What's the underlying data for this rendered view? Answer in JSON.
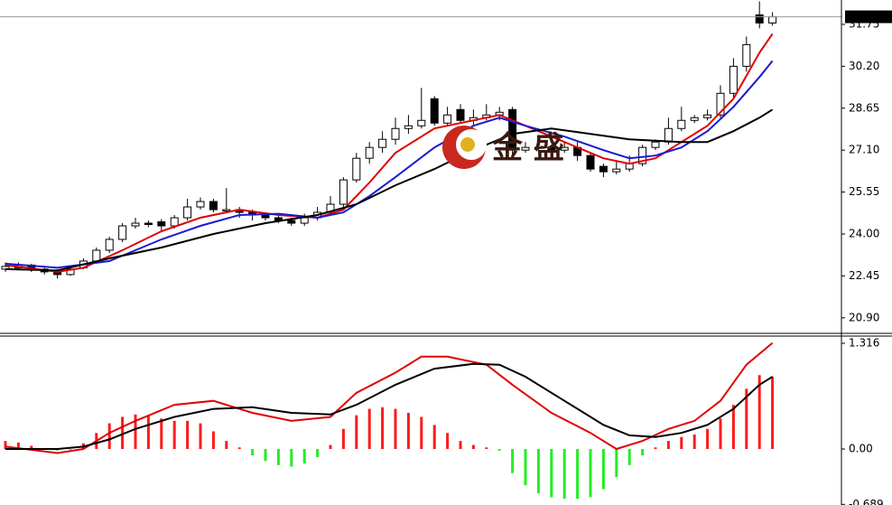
{
  "chart_data": [
    {
      "type": "candlestick",
      "ylim": [
        20.36,
        32.65
      ],
      "yticks": [
        {
          "value": 31.75,
          "label": "31.75"
        },
        {
          "value": 30.2,
          "label": "30.20"
        },
        {
          "value": 28.65,
          "label": "28.65"
        },
        {
          "value": 27.1,
          "label": "27.10"
        },
        {
          "value": 25.55,
          "label": "25.55"
        },
        {
          "value": 24.0,
          "label": "24.00"
        },
        {
          "value": 22.45,
          "label": "22.45"
        },
        {
          "value": 20.9,
          "label": "20.90"
        }
      ],
      "last_price": 32.03,
      "watermark": "金 盛",
      "up_color": "#ffffff",
      "down_color": "#000000",
      "ohlc": [
        [
          22.7,
          22.95,
          22.6,
          22.8
        ],
        [
          22.75,
          22.95,
          22.7,
          22.85
        ],
        [
          22.85,
          22.9,
          22.6,
          22.7
        ],
        [
          22.7,
          22.75,
          22.5,
          22.6
        ],
        [
          22.6,
          22.7,
          22.35,
          22.5
        ],
        [
          22.5,
          22.85,
          22.45,
          22.7
        ],
        [
          22.75,
          23.1,
          22.7,
          23.0
        ],
        [
          23.0,
          23.5,
          22.95,
          23.4
        ],
        [
          23.4,
          23.9,
          23.3,
          23.8
        ],
        [
          23.8,
          24.4,
          23.7,
          24.3
        ],
        [
          24.3,
          24.6,
          24.2,
          24.4
        ],
        [
          24.4,
          24.5,
          24.25,
          24.35
        ],
        [
          24.45,
          24.55,
          24.1,
          24.3
        ],
        [
          24.3,
          24.7,
          24.2,
          24.6
        ],
        [
          24.6,
          25.3,
          24.5,
          25.0
        ],
        [
          25.0,
          25.35,
          24.9,
          25.2
        ],
        [
          25.2,
          25.3,
          24.8,
          24.9
        ],
        [
          24.85,
          25.7,
          24.8,
          24.9
        ],
        [
          24.9,
          25.0,
          24.6,
          24.8
        ],
        [
          24.8,
          24.9,
          24.5,
          24.7
        ],
        [
          24.7,
          24.8,
          24.5,
          24.6
        ],
        [
          24.6,
          24.7,
          24.4,
          24.5
        ],
        [
          24.5,
          24.6,
          24.3,
          24.4
        ],
        [
          24.4,
          24.75,
          24.3,
          24.6
        ],
        [
          24.6,
          25.0,
          24.5,
          24.8
        ],
        [
          24.8,
          25.4,
          24.7,
          25.1
        ],
        [
          25.1,
          26.1,
          25.0,
          26.0
        ],
        [
          26.0,
          27.0,
          25.9,
          26.8
        ],
        [
          26.8,
          27.4,
          26.6,
          27.2
        ],
        [
          27.2,
          27.8,
          27.0,
          27.5
        ],
        [
          27.5,
          28.3,
          27.3,
          27.9
        ],
        [
          27.9,
          28.4,
          27.7,
          28.0
        ],
        [
          28.0,
          29.4,
          27.9,
          28.2
        ],
        [
          29.0,
          29.1,
          28.0,
          28.1
        ],
        [
          28.1,
          28.7,
          28.0,
          28.4
        ],
        [
          28.6,
          28.8,
          28.1,
          28.2
        ],
        [
          28.2,
          28.6,
          28.0,
          28.3
        ],
        [
          28.3,
          28.8,
          28.2,
          28.4
        ],
        [
          28.4,
          28.7,
          28.2,
          28.5
        ],
        [
          28.6,
          28.7,
          26.9,
          27.1
        ],
        [
          27.1,
          27.4,
          27.0,
          27.2
        ],
        [
          27.2,
          27.4,
          27.0,
          27.2
        ],
        [
          27.2,
          27.3,
          26.9,
          27.1
        ],
        [
          27.1,
          27.4,
          27.0,
          27.2
        ],
        [
          27.2,
          27.4,
          26.7,
          26.9
        ],
        [
          26.9,
          27.0,
          26.3,
          26.4
        ],
        [
          26.5,
          26.6,
          26.1,
          26.3
        ],
        [
          26.3,
          26.7,
          26.2,
          26.4
        ],
        [
          26.4,
          26.9,
          26.3,
          26.6
        ],
        [
          26.6,
          27.3,
          26.5,
          27.2
        ],
        [
          27.2,
          27.5,
          27.1,
          27.4
        ],
        [
          27.4,
          28.3,
          27.3,
          27.9
        ],
        [
          27.9,
          28.7,
          27.8,
          28.2
        ],
        [
          28.2,
          28.4,
          28.1,
          28.3
        ],
        [
          28.3,
          28.6,
          28.2,
          28.4
        ],
        [
          28.4,
          29.5,
          28.3,
          29.2
        ],
        [
          29.2,
          30.5,
          29.0,
          30.2
        ],
        [
          30.2,
          31.3,
          30.0,
          31.0
        ],
        [
          32.1,
          32.6,
          31.6,
          31.8
        ],
        [
          31.8,
          32.2,
          31.7,
          32.03
        ]
      ],
      "lines": [
        {
          "color": "#e00000",
          "x": [
            0,
            4,
            6,
            9,
            12,
            15,
            18,
            21,
            24,
            26,
            28,
            30,
            33,
            36,
            38,
            40,
            43,
            46,
            48,
            50,
            52,
            54,
            56,
            58,
            59
          ],
          "values": [
            22.85,
            22.6,
            22.75,
            23.4,
            24.1,
            24.6,
            24.9,
            24.7,
            24.6,
            24.9,
            25.9,
            27.0,
            27.9,
            28.2,
            28.4,
            28.0,
            27.4,
            26.8,
            26.6,
            26.8,
            27.4,
            28.0,
            29.0,
            30.7,
            31.4
          ]
        },
        {
          "color": "#1a1ad0",
          "x": [
            0,
            4,
            8,
            12,
            15,
            18,
            21,
            24,
            26,
            28,
            30,
            33,
            36,
            38,
            40,
            43,
            46,
            48,
            50,
            52,
            54,
            56,
            58,
            59
          ],
          "values": [
            22.9,
            22.75,
            23.0,
            23.8,
            24.3,
            24.7,
            24.75,
            24.6,
            24.8,
            25.4,
            26.1,
            27.2,
            28.0,
            28.3,
            28.0,
            27.6,
            27.1,
            26.8,
            26.9,
            27.2,
            27.8,
            28.7,
            29.8,
            30.4
          ]
        },
        {
          "color": "#000000",
          "x": [
            0,
            4,
            8,
            12,
            16,
            20,
            24,
            27,
            30,
            33,
            36,
            39,
            42,
            45,
            48,
            52,
            54,
            56,
            58,
            59
          ],
          "values": [
            22.7,
            22.65,
            23.1,
            23.5,
            24.0,
            24.4,
            24.7,
            25.1,
            25.8,
            26.4,
            27.1,
            27.7,
            27.9,
            27.7,
            27.5,
            27.4,
            27.4,
            27.8,
            28.3,
            28.6
          ]
        }
      ]
    },
    {
      "type": "bar",
      "ylim": [
        -0.697,
        1.406
      ],
      "yticks": [
        1.316,
        {
          "value": 0,
          "label": "0.00"
        },
        -0.689
      ],
      "up_color": "#ff1a1a",
      "down_color": "#22ee22",
      "values": [
        0.1,
        0.08,
        0.04,
        0.0,
        -0.02,
        -0.01,
        0.07,
        0.2,
        0.32,
        0.4,
        0.43,
        0.42,
        0.38,
        0.35,
        0.35,
        0.32,
        0.22,
        0.1,
        0.02,
        -0.08,
        -0.15,
        -0.2,
        -0.22,
        -0.18,
        -0.1,
        0.05,
        0.25,
        0.42,
        0.5,
        0.52,
        0.5,
        0.45,
        0.4,
        0.3,
        0.2,
        0.1,
        0.05,
        0.02,
        -0.02,
        -0.3,
        -0.45,
        -0.55,
        -0.6,
        -0.62,
        -0.62,
        -0.6,
        -0.5,
        -0.35,
        -0.2,
        -0.08,
        0.02,
        0.1,
        0.15,
        0.18,
        0.25,
        0.38,
        0.55,
        0.75,
        0.92,
        0.9
      ],
      "lines": [
        {
          "color": "#e00000",
          "x": [
            0,
            4,
            6,
            8,
            10,
            13,
            16,
            19,
            22,
            25,
            27,
            30,
            32,
            34,
            37,
            39,
            42,
            45,
            47,
            49,
            51,
            53,
            55,
            57,
            59
          ],
          "values": [
            0.03,
            -0.05,
            0.0,
            0.2,
            0.35,
            0.55,
            0.6,
            0.45,
            0.35,
            0.4,
            0.7,
            0.95,
            1.15,
            1.15,
            1.05,
            0.8,
            0.45,
            0.2,
            0.0,
            0.1,
            0.25,
            0.35,
            0.6,
            1.05,
            1.32
          ]
        },
        {
          "color": "#000000",
          "x": [
            0,
            4,
            6,
            8,
            10,
            13,
            16,
            19,
            22,
            25,
            27,
            30,
            33,
            36,
            38,
            40,
            43,
            46,
            48,
            50,
            52,
            54,
            56,
            58,
            59
          ],
          "values": [
            0.0,
            0.0,
            0.03,
            0.12,
            0.25,
            0.4,
            0.5,
            0.52,
            0.45,
            0.43,
            0.55,
            0.8,
            1.0,
            1.06,
            1.05,
            0.9,
            0.6,
            0.3,
            0.17,
            0.15,
            0.2,
            0.3,
            0.5,
            0.8,
            0.9
          ]
        }
      ]
    }
  ]
}
